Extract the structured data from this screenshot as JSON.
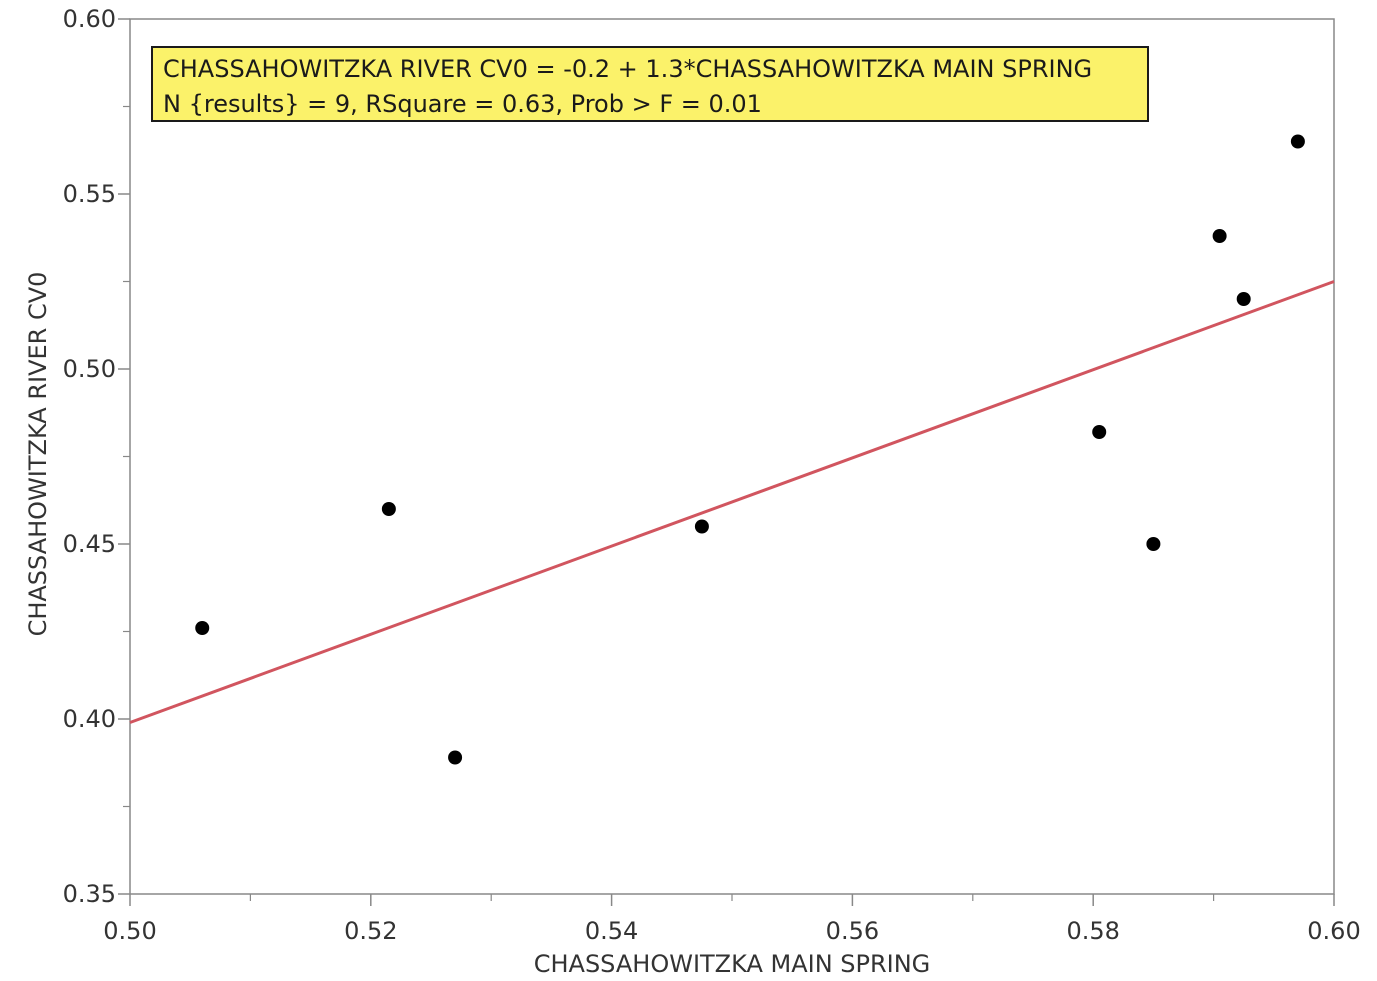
{
  "chart_data": {
    "type": "scatter",
    "title": "",
    "xlabel": "CHASSAHOWITZKA MAIN SPRING",
    "ylabel": "CHASSAHOWITZKA RIVER CV0",
    "xlim": [
      0.5,
      0.6
    ],
    "ylim": [
      0.35,
      0.6
    ],
    "x_ticks": [
      "0.50",
      "0.52",
      "0.54",
      "0.56",
      "0.58",
      "0.60"
    ],
    "y_ticks": [
      "0.35",
      "0.40",
      "0.45",
      "0.50",
      "0.55",
      "0.60"
    ],
    "grid": false,
    "points": [
      {
        "x": 0.506,
        "y": 0.426
      },
      {
        "x": 0.5215,
        "y": 0.46
      },
      {
        "x": 0.527,
        "y": 0.389
      },
      {
        "x": 0.5475,
        "y": 0.455
      },
      {
        "x": 0.5805,
        "y": 0.482
      },
      {
        "x": 0.585,
        "y": 0.45
      },
      {
        "x": 0.5905,
        "y": 0.538
      },
      {
        "x": 0.5925,
        "y": 0.52
      },
      {
        "x": 0.597,
        "y": 0.565
      }
    ],
    "fit_line": {
      "x": [
        0.5,
        0.6
      ],
      "y": [
        0.399,
        0.525
      ]
    },
    "annotation": {
      "line1": "CHASSAHOWITZKA RIVER CV0 = -0.2 + 1.3*CHASSAHOWITZKA MAIN SPRING",
      "line2": "N {results} = 9, RSquare = 0.63, Prob > F = 0.01"
    },
    "colors": {
      "points": "#000000",
      "fit_line": "#d1555f",
      "annotation_bg": "#fbf26a",
      "axis": "#888888"
    }
  }
}
